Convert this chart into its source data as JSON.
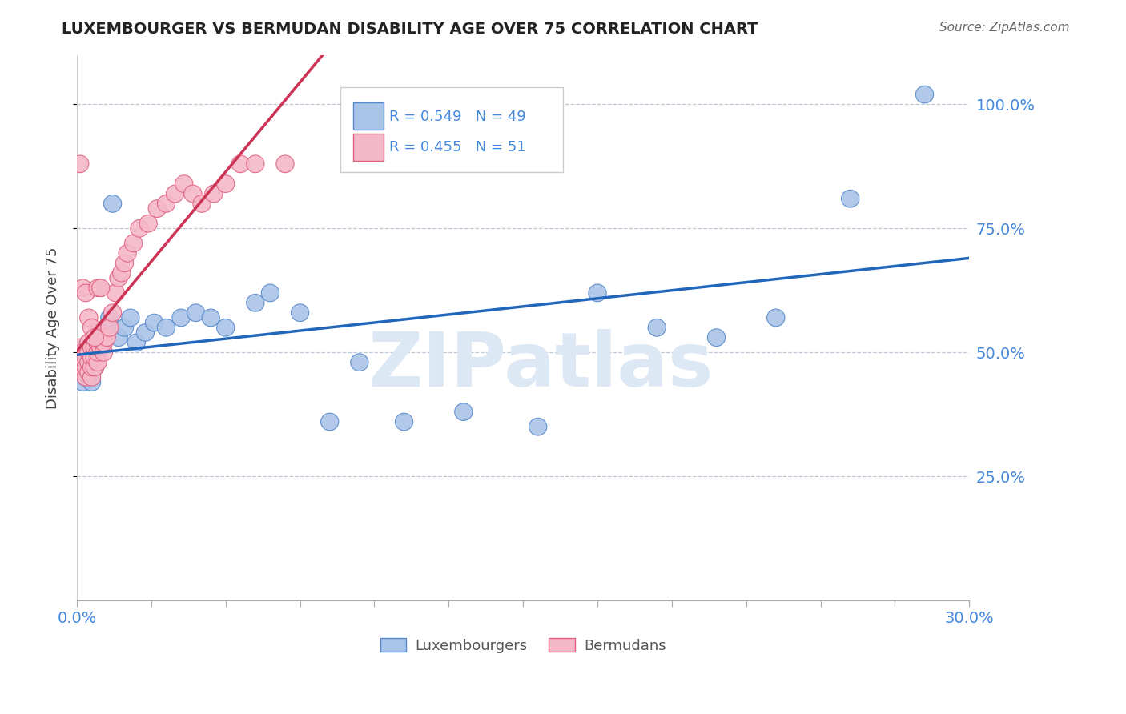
{
  "title": "LUXEMBOURGER VS BERMUDAN DISABILITY AGE OVER 75 CORRELATION CHART",
  "source": "Source: ZipAtlas.com",
  "ylabel": "Disability Age Over 75",
  "xlim": [
    0.0,
    0.3
  ],
  "ylim": [
    0.0,
    1.1
  ],
  "xtick_positions": [
    0.0,
    0.025,
    0.05,
    0.075,
    0.1,
    0.125,
    0.15,
    0.175,
    0.2,
    0.225,
    0.25,
    0.275,
    0.3
  ],
  "xticklabels_major": {
    "0.0": "0.0%",
    "0.10": "",
    "0.20": "",
    "0.30": "30.0%"
  },
  "xtick_label_positions": [
    0.0,
    0.3
  ],
  "xtick_label_values": [
    "0.0%",
    "30.0%"
  ],
  "ytick_positions": [
    0.25,
    0.5,
    0.75,
    1.0
  ],
  "yticklabels": [
    "25.0%",
    "50.0%",
    "75.0%",
    "100.0%"
  ],
  "blue_R": 0.549,
  "blue_N": 49,
  "pink_R": 0.455,
  "pink_N": 51,
  "blue_color": "#aac4e8",
  "pink_color": "#f5b8c8",
  "blue_edge_color": "#5588cc",
  "pink_edge_color": "#e06080",
  "blue_line_color": "#2266bb",
  "pink_line_color": "#cc3355",
  "right_label_color": "#4488dd",
  "watermark": "ZIPatlas",
  "watermark_color": "#dde8f5",
  "legend_label_blue": "Luxembourgers",
  "legend_label_pink": "Bermudans",
  "blue_x": [
    0.001,
    0.001,
    0.002,
    0.002,
    0.002,
    0.003,
    0.003,
    0.003,
    0.003,
    0.004,
    0.004,
    0.004,
    0.005,
    0.005,
    0.005,
    0.006,
    0.006,
    0.007,
    0.007,
    0.008,
    0.009,
    0.01,
    0.011,
    0.012,
    0.014,
    0.016,
    0.018,
    0.02,
    0.023,
    0.026,
    0.03,
    0.035,
    0.04,
    0.045,
    0.05,
    0.06,
    0.065,
    0.075,
    0.085,
    0.095,
    0.11,
    0.13,
    0.155,
    0.175,
    0.195,
    0.215,
    0.235,
    0.26,
    0.285
  ],
  "blue_y": [
    0.46,
    0.48,
    0.44,
    0.47,
    0.49,
    0.45,
    0.47,
    0.49,
    0.51,
    0.46,
    0.48,
    0.5,
    0.44,
    0.46,
    0.48,
    0.47,
    0.49,
    0.5,
    0.52,
    0.51,
    0.53,
    0.55,
    0.57,
    0.8,
    0.53,
    0.55,
    0.57,
    0.52,
    0.54,
    0.56,
    0.55,
    0.57,
    0.58,
    0.57,
    0.55,
    0.6,
    0.62,
    0.58,
    0.36,
    0.48,
    0.36,
    0.38,
    0.35,
    0.62,
    0.55,
    0.53,
    0.57,
    0.81,
    1.02
  ],
  "pink_x": [
    0.001,
    0.001,
    0.001,
    0.002,
    0.002,
    0.002,
    0.003,
    0.003,
    0.003,
    0.004,
    0.004,
    0.004,
    0.004,
    0.005,
    0.005,
    0.005,
    0.005,
    0.006,
    0.006,
    0.006,
    0.006,
    0.007,
    0.007,
    0.007,
    0.007,
    0.008,
    0.008,
    0.009,
    0.009,
    0.01,
    0.011,
    0.012,
    0.013,
    0.014,
    0.015,
    0.016,
    0.017,
    0.019,
    0.021,
    0.024,
    0.027,
    0.03,
    0.033,
    0.036,
    0.039,
    0.042,
    0.046,
    0.05,
    0.055,
    0.06,
    0.07
  ],
  "pink_y": [
    0.47,
    0.49,
    0.51,
    0.46,
    0.48,
    0.5,
    0.45,
    0.47,
    0.49,
    0.46,
    0.48,
    0.5,
    0.52,
    0.45,
    0.47,
    0.49,
    0.51,
    0.47,
    0.49,
    0.51,
    0.53,
    0.48,
    0.5,
    0.52,
    0.54,
    0.51,
    0.53,
    0.5,
    0.52,
    0.53,
    0.55,
    0.58,
    0.62,
    0.65,
    0.66,
    0.68,
    0.7,
    0.72,
    0.75,
    0.76,
    0.79,
    0.8,
    0.82,
    0.84,
    0.82,
    0.8,
    0.82,
    0.84,
    0.88,
    0.88,
    0.88
  ],
  "pink_extra_points_x": [
    0.001,
    0.002,
    0.003,
    0.004,
    0.005,
    0.006,
    0.007,
    0.008
  ],
  "pink_extra_points_y": [
    0.88,
    0.63,
    0.62,
    0.57,
    0.55,
    0.53,
    0.63,
    0.63
  ]
}
